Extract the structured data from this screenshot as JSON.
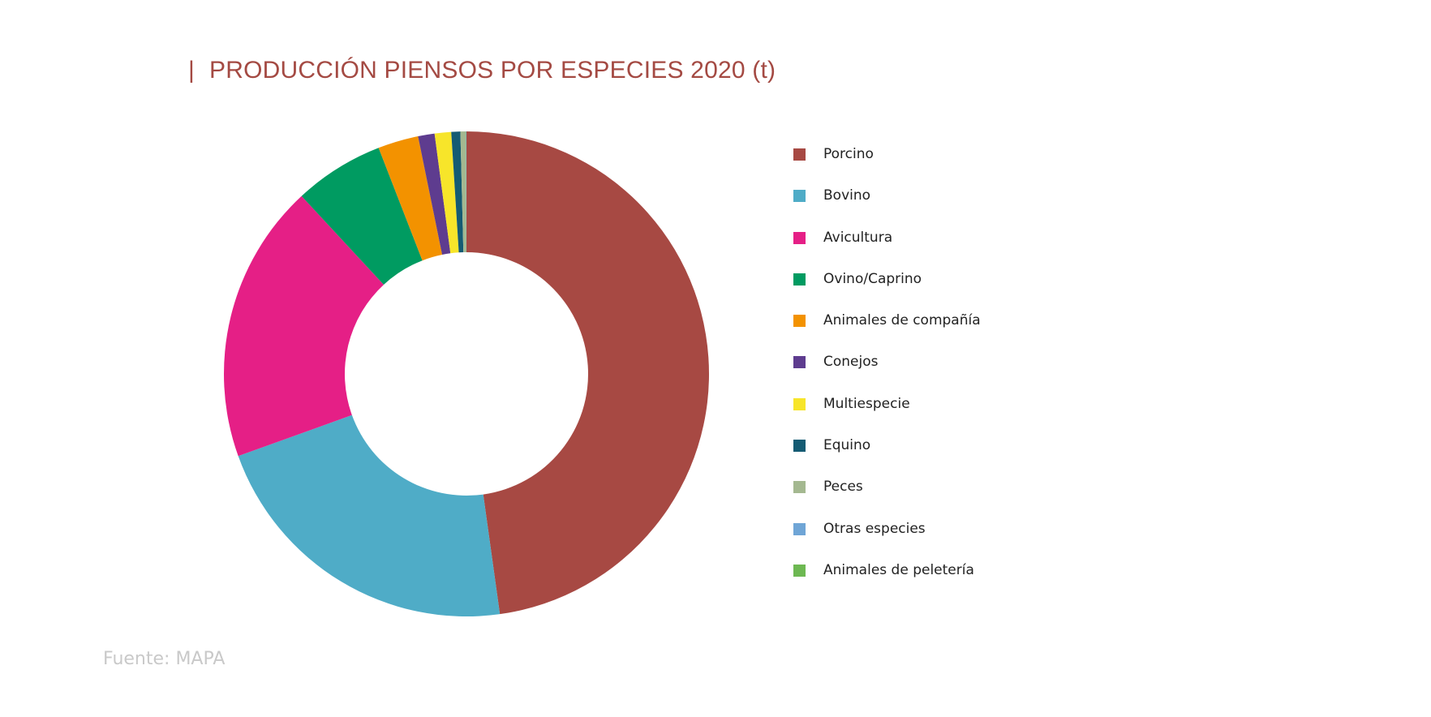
{
  "chart_data": {
    "type": "pie",
    "title": "PRODUCCIÓN PIENSOS POR ESPECIES 2020 (t)",
    "title_prefix": "|",
    "variant": "donut",
    "legend_position": "right",
    "source": "Fuente: MAPA",
    "slices": [
      {
        "label": "Porcino",
        "value": 47.8,
        "color": "#a74943"
      },
      {
        "label": "Bovino",
        "value": 21.7,
        "color": "#4facc7"
      },
      {
        "label": "Avicultura",
        "value": 18.6,
        "color": "#e51f86"
      },
      {
        "label": "Ovino/Caprino",
        "value": 6.0,
        "color": "#009b61"
      },
      {
        "label": "Animales de compañía",
        "value": 2.7,
        "color": "#f39200"
      },
      {
        "label": "Conejos",
        "value": 1.1,
        "color": "#5e3c8f"
      },
      {
        "label": "Multiespecie",
        "value": 1.1,
        "color": "#f7e52a"
      },
      {
        "label": "Equino",
        "value": 0.6,
        "color": "#145b73"
      },
      {
        "label": "Peces",
        "value": 0.35,
        "color": "#a4b890"
      },
      {
        "label": "Otras especies",
        "value": 0.03,
        "color": "#6fa5d6"
      },
      {
        "label": "Animales de peletería",
        "value": 0.02,
        "color": "#6db852"
      }
    ]
  }
}
